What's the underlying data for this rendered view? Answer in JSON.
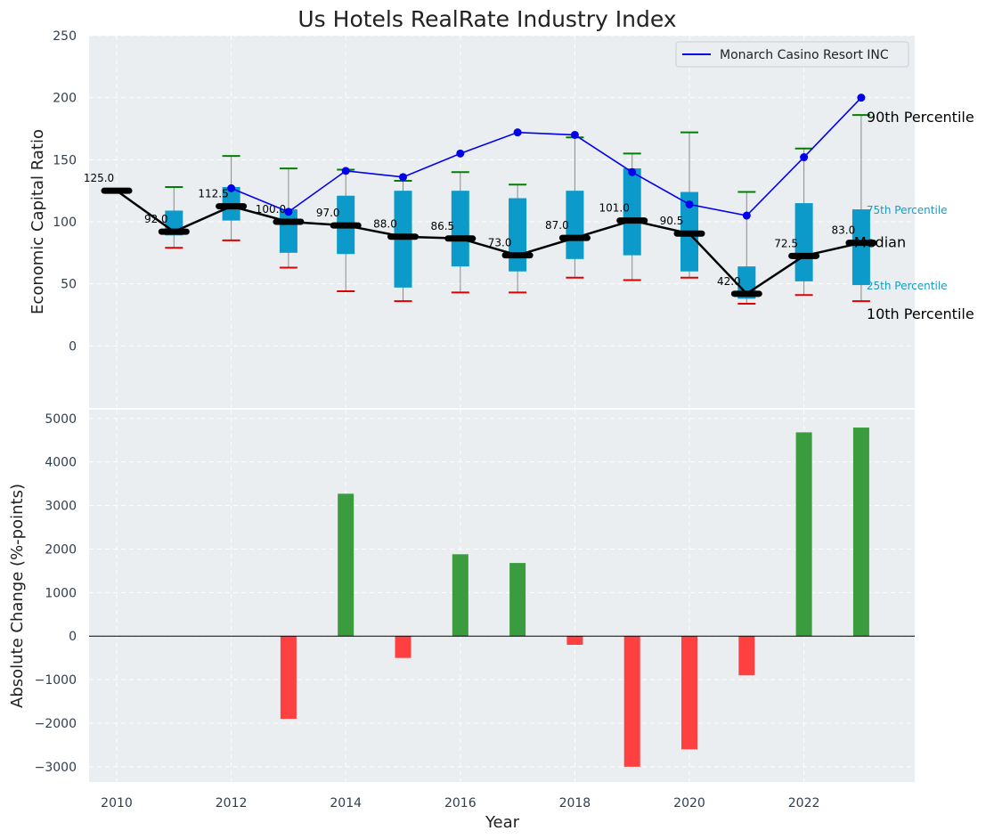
{
  "chart_data": [
    {
      "type": "box-line",
      "title": "Us Hotels RealRate Industry Index",
      "ylabel": "Economic Capital Ratio",
      "ylim": [
        -50,
        250
      ],
      "yticks": [
        0,
        50,
        100,
        150,
        200,
        250
      ],
      "grid": true,
      "legend": {
        "placement": "top-right",
        "entries": [
          "Monarch Casino Resort INC"
        ]
      },
      "years": [
        2010,
        2011,
        2012,
        2013,
        2014,
        2015,
        2016,
        2017,
        2018,
        2019,
        2020,
        2021,
        2022,
        2023
      ],
      "median": [
        125.0,
        92.0,
        112.5,
        100.0,
        97.0,
        88.0,
        86.5,
        73.0,
        87.0,
        101.0,
        90.5,
        42.0,
        72.5,
        83.0
      ],
      "median_labels": [
        "125.0",
        "92.0",
        "112.5",
        "100.0",
        "97.0",
        "88.0",
        "86.5",
        "73.0",
        "87.0",
        "101.0",
        "90.5",
        "42.0",
        "72.5",
        "83.0"
      ],
      "p25": [
        null,
        89,
        101,
        75,
        74,
        47,
        64,
        60,
        70,
        73,
        60,
        38,
        52,
        49
      ],
      "p75": [
        null,
        109,
        128,
        110,
        121,
        125,
        125,
        119,
        125,
        143,
        124,
        64,
        115,
        110
      ],
      "p10": [
        null,
        79,
        85,
        63,
        44,
        36,
        43,
        43,
        55,
        53,
        55,
        34,
        41,
        36
      ],
      "p90": [
        null,
        128,
        153,
        143,
        142,
        133,
        140,
        130,
        168,
        155,
        172,
        124,
        159,
        186
      ],
      "company": {
        "name": "Monarch Casino Resort INC",
        "years": [
          2012,
          2013,
          2014,
          2015,
          2016,
          2017,
          2018,
          2019,
          2020,
          2021,
          2022,
          2023
        ],
        "values": [
          127,
          108,
          141,
          136,
          155,
          172,
          170,
          140,
          114,
          105,
          152,
          200
        ]
      },
      "side_labels": [
        "90th Percentile",
        "75th Percentile",
        "Median",
        "25th Percentile",
        "10th Percentile"
      ],
      "colors": {
        "box": "#0b9ac9",
        "median": "#000000",
        "company": "#0000ee",
        "p90": "#008000",
        "p10": "#e00000",
        "whisker": "#8a8a8a",
        "label75": "#1a9cc0"
      }
    },
    {
      "type": "bar",
      "ylabel": "Absolute Change (%-points)",
      "xlabel": "Year",
      "ylim": [
        -3350,
        5200
      ],
      "yticks": [
        -3000,
        -2000,
        -1000,
        0,
        1000,
        2000,
        3000,
        4000,
        5000
      ],
      "ytick_labels": [
        "−3000",
        "−2000",
        "−1000",
        "0",
        "1000",
        "2000",
        "3000",
        "4000",
        "5000"
      ],
      "xticks": [
        2010,
        2012,
        2014,
        2016,
        2018,
        2020,
        2022
      ],
      "years": [
        2013,
        2014,
        2015,
        2016,
        2017,
        2018,
        2019,
        2020,
        2021,
        2022,
        2023
      ],
      "values": [
        -1900,
        3270,
        -500,
        1880,
        1680,
        -200,
        -3000,
        -2600,
        -900,
        4680,
        4790
      ],
      "colors": {
        "positive": "#3a9b3f",
        "negative": "#ff4040"
      }
    }
  ]
}
